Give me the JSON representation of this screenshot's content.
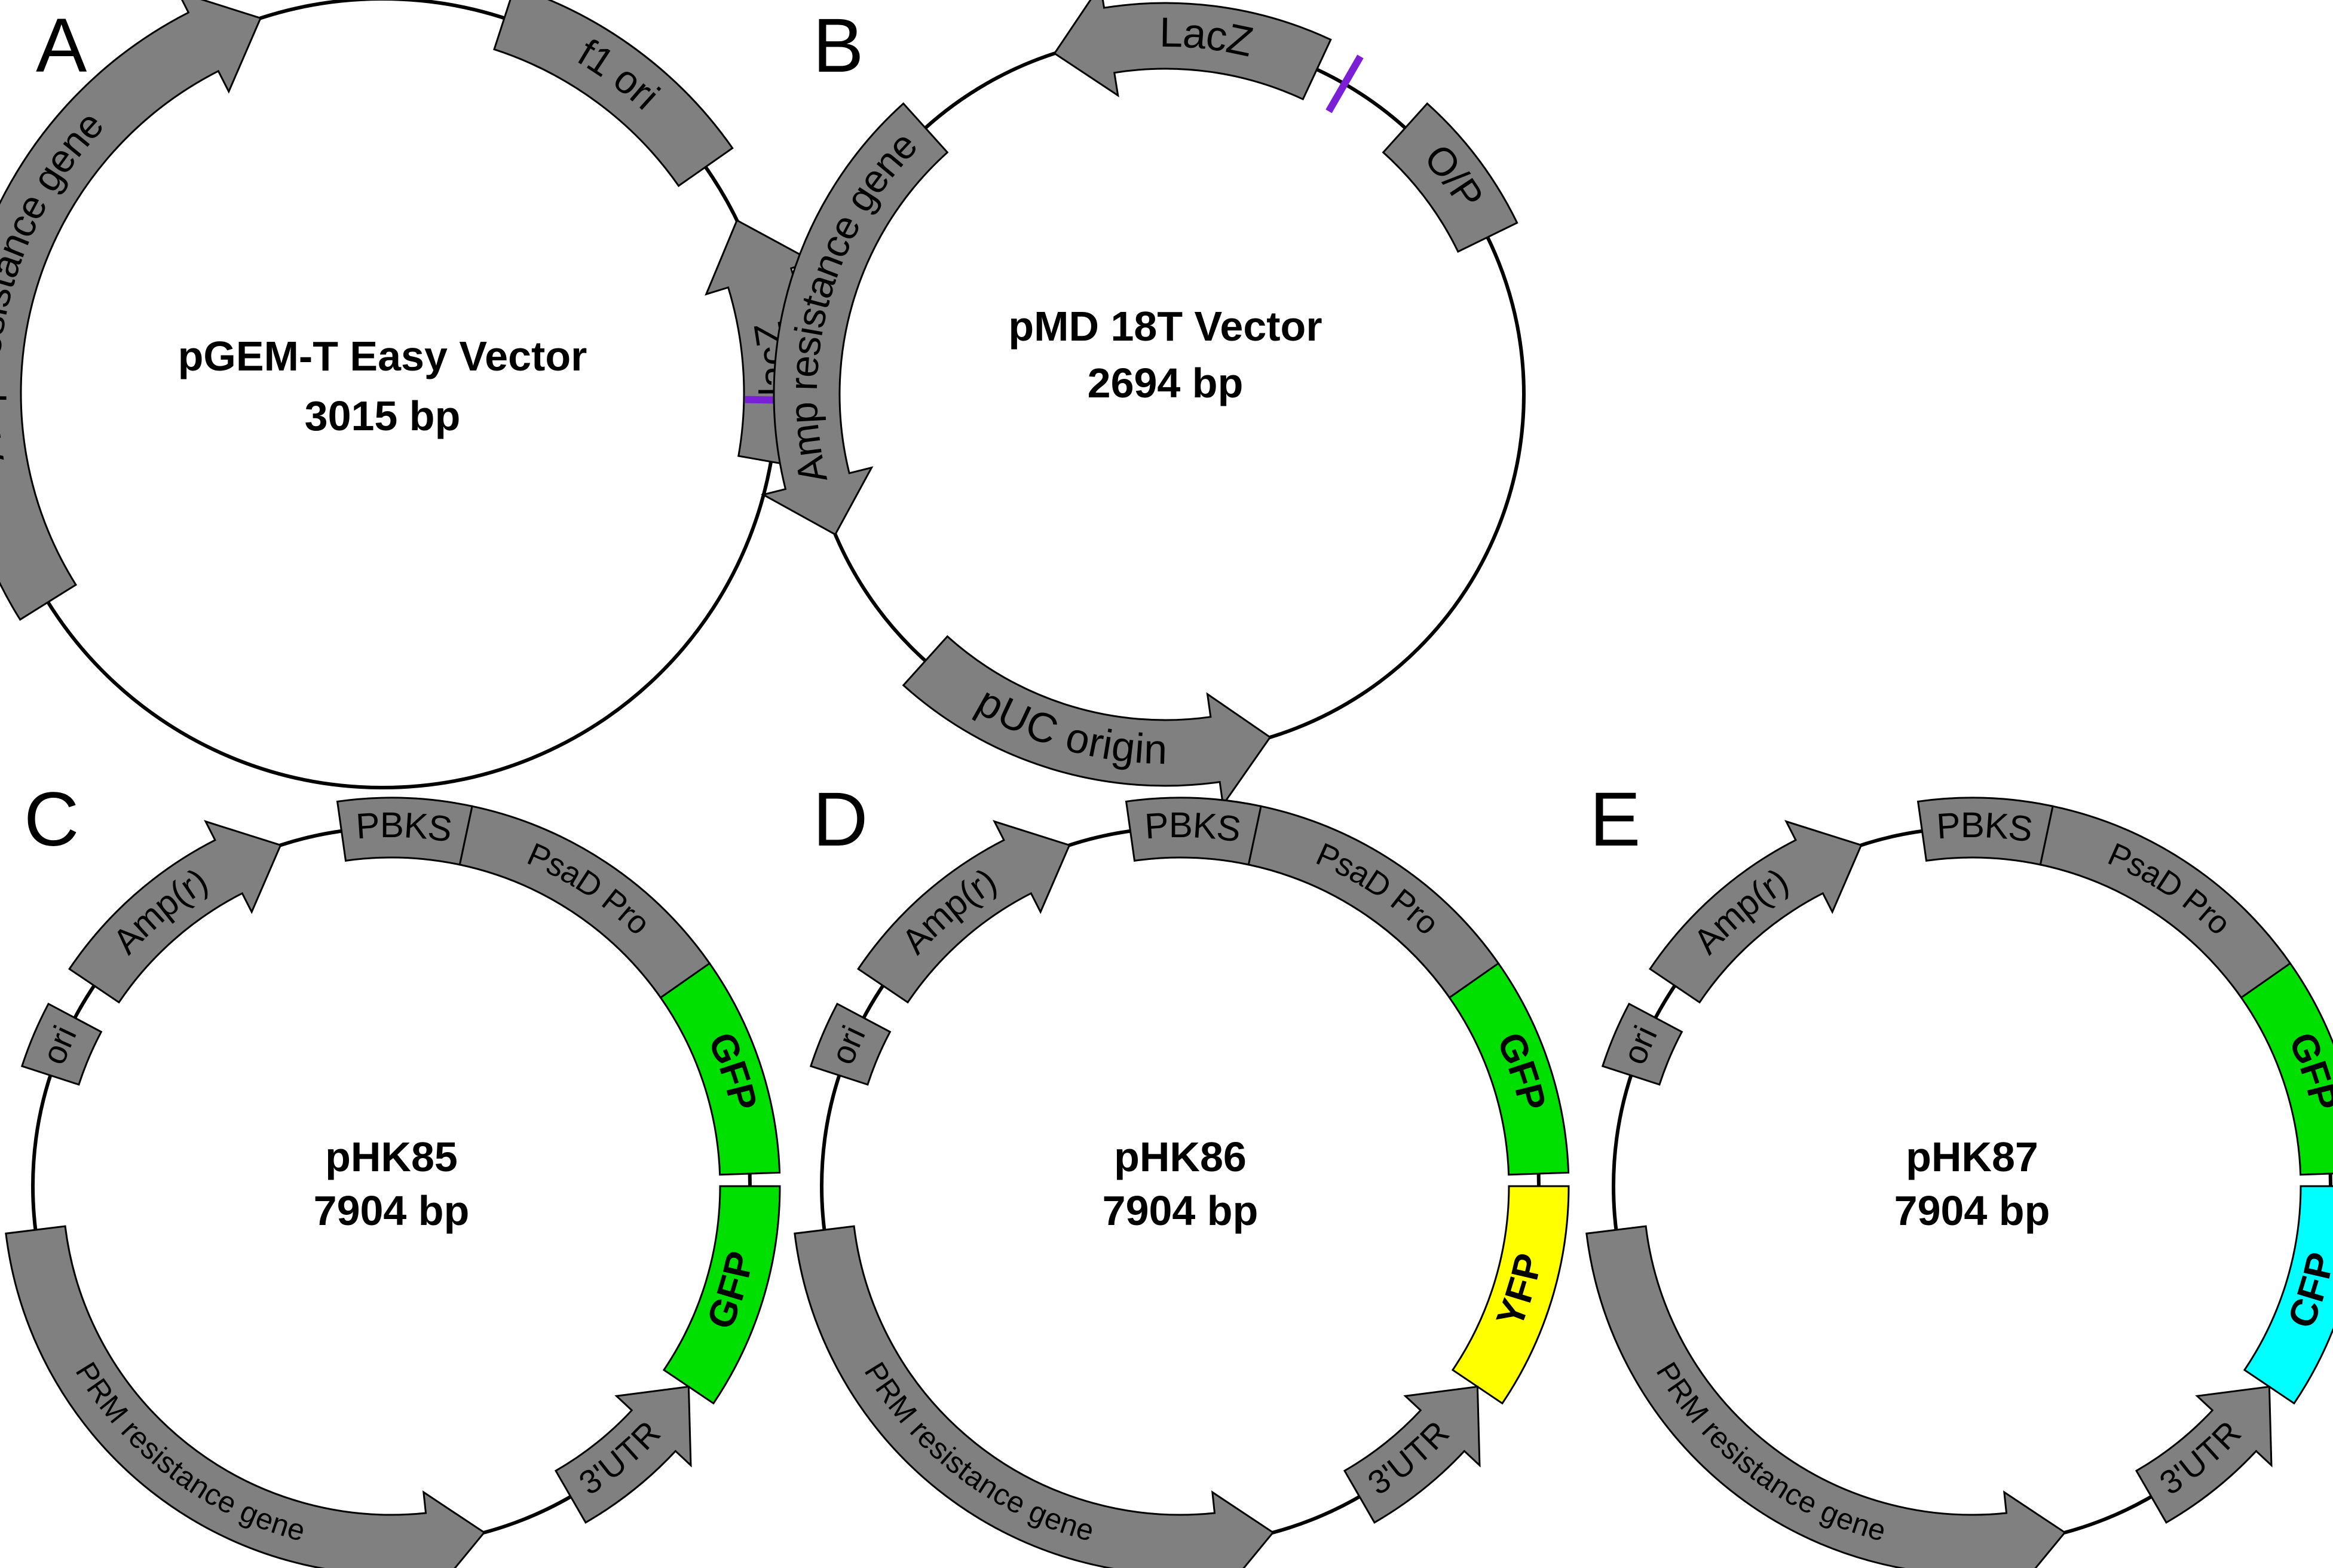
{
  "colors": {
    "feature_gray": "#808080",
    "gfp_green": "#00e000",
    "yfp_yellow": "#ffff00",
    "cfp_cyan": "#00ffff",
    "marker_purple": "#7a1fd6"
  },
  "plasmids": [
    {
      "letter": "A",
      "name": "pGEM-T Easy Vector",
      "size": "3015 bp",
      "features": [
        {
          "label": "Amp resistance gene",
          "color": "gray"
        },
        {
          "label": "f1 ori",
          "color": "gray"
        },
        {
          "label": "lacZ",
          "color": "gray"
        }
      ]
    },
    {
      "letter": "B",
      "name": "pMD 18T Vector",
      "size": "2694 bp",
      "features": [
        {
          "label": "LacZ",
          "color": "gray"
        },
        {
          "label": "O/P",
          "color": "gray"
        },
        {
          "label": "pUC origin",
          "color": "gray"
        },
        {
          "label": "Amp resistance gene",
          "color": "gray"
        }
      ]
    },
    {
      "letter": "C",
      "name": "pHK85",
      "size": "7904 bp",
      "features": [
        {
          "label": "PBKS",
          "color": "gray"
        },
        {
          "label": "PsaD Pro",
          "color": "gray"
        },
        {
          "label": "GFP",
          "color": "green"
        },
        {
          "label": "GFP",
          "color": "green"
        },
        {
          "label": "3'UTR",
          "color": "gray"
        },
        {
          "label": "PRM resistance gene",
          "color": "gray"
        },
        {
          "label": "ori",
          "color": "gray"
        },
        {
          "label": "Amp(r)",
          "color": "gray"
        }
      ]
    },
    {
      "letter": "D",
      "name": "pHK86",
      "size": "7904 bp",
      "features": [
        {
          "label": "PBKS",
          "color": "gray"
        },
        {
          "label": "PsaD Pro",
          "color": "gray"
        },
        {
          "label": "GFP",
          "color": "green"
        },
        {
          "label": "YFP",
          "color": "yellow"
        },
        {
          "label": "3'UTR",
          "color": "gray"
        },
        {
          "label": "PRM resistance gene",
          "color": "gray"
        },
        {
          "label": "ori",
          "color": "gray"
        },
        {
          "label": "Amp(r)",
          "color": "gray"
        }
      ]
    },
    {
      "letter": "E",
      "name": "pHK87",
      "size": "7904 bp",
      "features": [
        {
          "label": "PBKS",
          "color": "gray"
        },
        {
          "label": "PsaD Pro",
          "color": "gray"
        },
        {
          "label": "GFP",
          "color": "green"
        },
        {
          "label": "CFP",
          "color": "cyan"
        },
        {
          "label": "3'UTR",
          "color": "gray"
        },
        {
          "label": "PRM resistance gene",
          "color": "gray"
        },
        {
          "label": "ori",
          "color": "gray"
        },
        {
          "label": "Amp(r)",
          "color": "gray"
        }
      ]
    }
  ]
}
